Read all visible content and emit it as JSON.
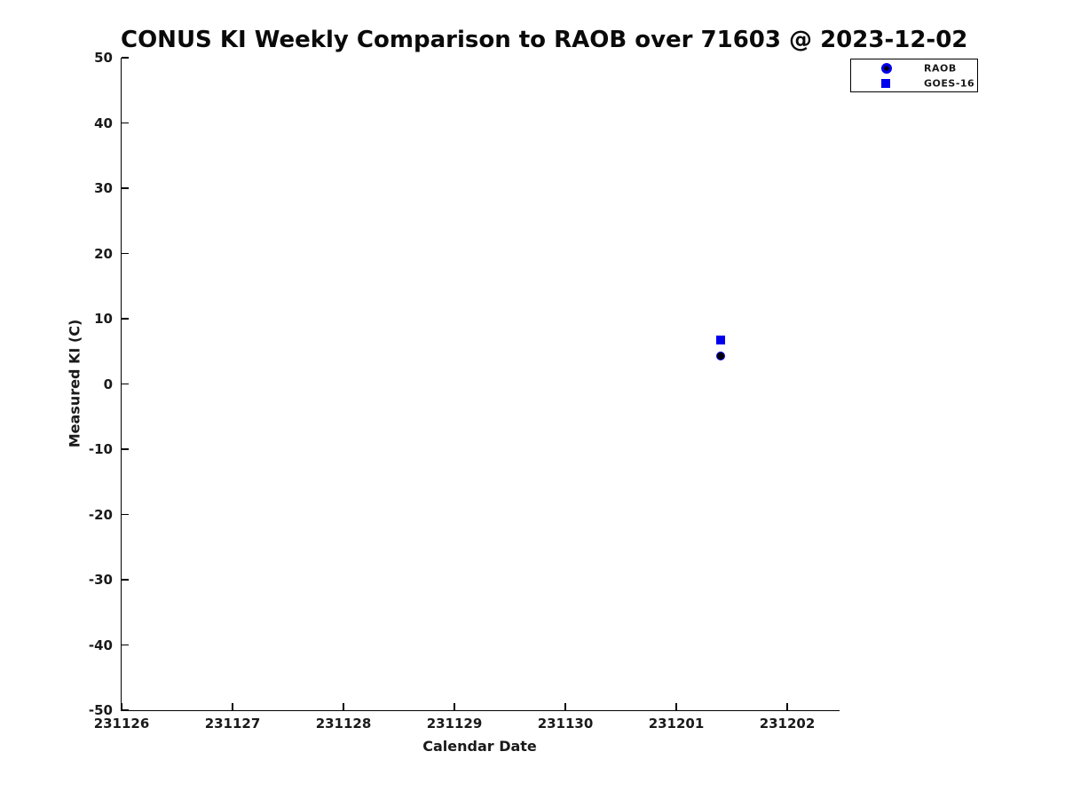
{
  "chart_data": {
    "type": "scatter",
    "title": "CONUS KI Weekly Comparison to RAOB over 71603 @ 2023-12-02",
    "xlabel": "Calendar Date",
    "ylabel": "Measured KI (C)",
    "x_ticks": [
      "231126",
      "231127",
      "231128",
      "231129",
      "231130",
      "231201",
      "231202"
    ],
    "y_ticks": [
      50,
      40,
      30,
      20,
      10,
      0,
      -10,
      -20,
      -30,
      -40,
      -50
    ],
    "ylim": [
      -50,
      50
    ],
    "grid": false,
    "background": "#ffffff",
    "accent_blue": "#0000ee",
    "legend": {
      "position": "top-right",
      "entries": [
        {
          "label": "RAOB",
          "marker": "circle",
          "edge_color": "#0000ee",
          "face_color": "#000000"
        },
        {
          "label": "GOES-16",
          "marker": "square",
          "edge_color": "#0000ee",
          "face_color": "#0000ee"
        }
      ]
    },
    "series": [
      {
        "name": "RAOB",
        "marker": "circle",
        "edge_color": "#0000ee",
        "face_color": "#000000",
        "points": [
          {
            "x": 231201.4,
            "y": 4.3
          }
        ]
      },
      {
        "name": "GOES-16",
        "marker": "square",
        "edge_color": "#0000ee",
        "face_color": "#0000ee",
        "points": [
          {
            "x": 231201.4,
            "y": 6.7
          }
        ]
      }
    ]
  }
}
